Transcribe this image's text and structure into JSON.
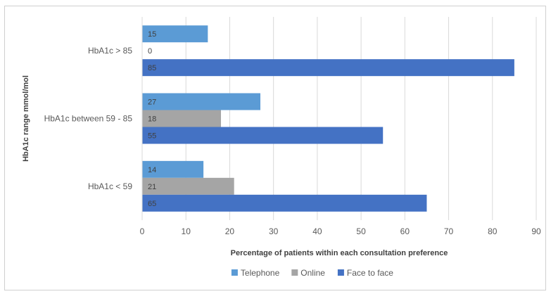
{
  "chart_data": {
    "type": "bar",
    "orientation": "horizontal",
    "categories": [
      "HbA1c > 85",
      "HbA1c between 59 - 85",
      "HbA1c < 59"
    ],
    "series": [
      {
        "name": "Telephone",
        "values": [
          15,
          27,
          14
        ],
        "color": "#5b9bd5"
      },
      {
        "name": "Online",
        "values": [
          0,
          18,
          21
        ],
        "color": "#a5a5a5"
      },
      {
        "name": "Face to face",
        "values": [
          85,
          55,
          65
        ],
        "color": "#4472c4"
      }
    ],
    "xlabel": "Percentage of patients within each consultation preference",
    "ylabel": "HbA1c range mmol/mol",
    "xlim": [
      0,
      90
    ],
    "xticks": [
      0,
      10,
      20,
      30,
      40,
      50,
      60,
      70,
      80,
      90
    ],
    "grid": true,
    "legend_position": "bottom"
  }
}
